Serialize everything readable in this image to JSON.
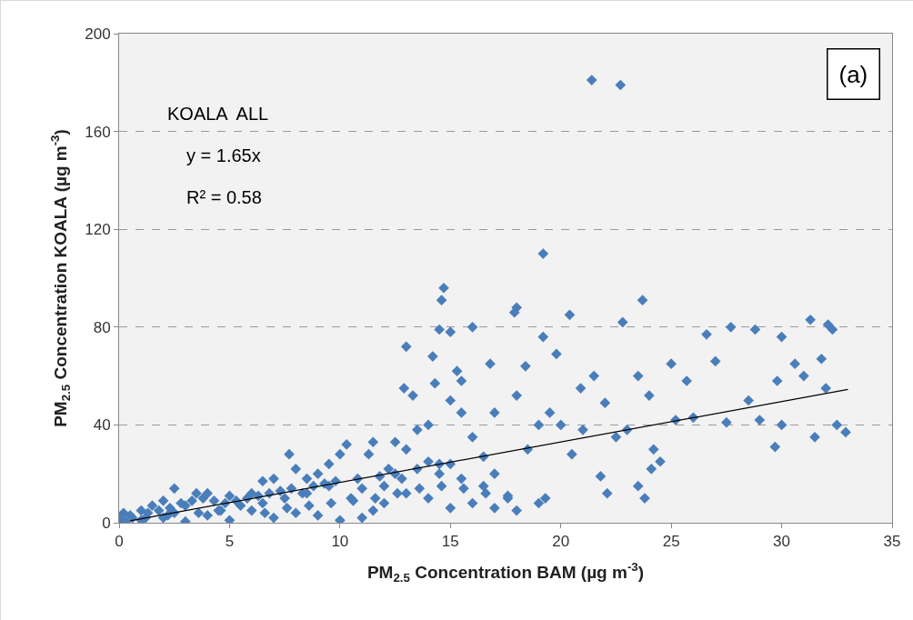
{
  "chart_data": {
    "type": "scatter",
    "xlabel": "PM$_{2.5}$ Concentration BAM (µg m$^{-3}$)",
    "ylabel": "PM$_{2.5}$ Concentration KOALA (µg m$^{-3}$)",
    "annotations": [
      "KOALA  ALL",
      "y = 1.65x",
      "R² = 0.58",
      "(a)"
    ],
    "xlim": [
      0,
      35
    ],
    "xticks": [
      0,
      5,
      10,
      15,
      20,
      25,
      30,
      35
    ],
    "ylim": [
      0,
      200
    ],
    "yticks": [
      0,
      40,
      80,
      120,
      160,
      200
    ],
    "grid": "y",
    "marker": "diamond",
    "series": [
      {
        "color": "#4a7ebb",
        "x": [
          21.4,
          22.7,
          19.2,
          14.7,
          14.6,
          23.7,
          20.4,
          22.8,
          18.0,
          17.9,
          16.0,
          15.0,
          14.5,
          31.3,
          32.1,
          32.3,
          27.7,
          28.8,
          26.6,
          30.0,
          19.2,
          13.0,
          16.8,
          14.2,
          12.9,
          13.3,
          15.3,
          15.5,
          14.3,
          18.4,
          19.8,
          20.9,
          21.5,
          22.0,
          23.5,
          24.0,
          25.0,
          25.7,
          27.0,
          28.5,
          29.8,
          30.6,
          31.0,
          31.8,
          32.0,
          32.5,
          32.9,
          31.5,
          29.7,
          30.0,
          29.0,
          27.5,
          26.0,
          25.2,
          24.2,
          24.1,
          23.8,
          23.5,
          22.1,
          21.8,
          20.5,
          19.3,
          19.0,
          18.0,
          17.6,
          17.0,
          16.5,
          16.0,
          15.5,
          15.0,
          14.0,
          13.5,
          13.0,
          12.5,
          12.8,
          12.2,
          11.5,
          11.3,
          10.3,
          10.0,
          9.5,
          9.0,
          8.5,
          7.7,
          8.0,
          7.0,
          6.5,
          6.0,
          5.0,
          4.0,
          3.5,
          2.5,
          2.0,
          1.5,
          1.0,
          0.5,
          0.2,
          0.1,
          0.0,
          0.3,
          1.0,
          2.0,
          3.0,
          4.0,
          5.0,
          6.0,
          7.0,
          8.0,
          9.0,
          10.0,
          11.0,
          11.5,
          12.0,
          13.0,
          14.0,
          15.0,
          16.0,
          17.0,
          10.5,
          8.5,
          5.5,
          3.0,
          12.0,
          14.5,
          15.5,
          16.5,
          18.5,
          19.5,
          20.0,
          21.0,
          22.5,
          23.0,
          24.5,
          19.0,
          18.0,
          17.0,
          15.0,
          14.0,
          11.0,
          9.5,
          7.5,
          6.5,
          4.5,
          2.5,
          0.6,
          1.3,
          1.8,
          2.3,
          2.8,
          3.3,
          3.8,
          4.3,
          4.8,
          5.3,
          5.8,
          6.3,
          6.8,
          7.3,
          7.8,
          8.3,
          8.8,
          9.3,
          9.8,
          10.8,
          11.8,
          12.5,
          13.5,
          14.5,
          1.2,
          2.2,
          3.6,
          4.6,
          6.6,
          7.6,
          8.6,
          9.6,
          10.6,
          11.6,
          12.6,
          13.6,
          14.6,
          15.6,
          16.6,
          17.6
        ],
        "values": [
          181,
          179,
          110,
          96,
          91,
          91,
          85,
          82,
          88,
          86,
          80,
          78,
          79,
          83,
          81,
          79,
          80,
          79,
          77,
          76,
          76,
          72,
          65,
          68,
          55,
          52,
          62,
          58,
          57,
          64,
          69,
          55,
          60,
          49,
          60,
          52,
          65,
          58,
          66,
          50,
          58,
          65,
          60,
          67,
          55,
          40,
          37,
          35,
          31,
          40,
          42,
          41,
          43,
          42,
          30,
          22,
          10,
          15,
          12,
          19,
          28,
          10,
          8,
          5,
          10,
          20,
          27,
          35,
          45,
          50,
          40,
          38,
          30,
          33,
          18,
          22,
          33,
          28,
          32,
          28,
          24,
          20,
          18,
          28,
          22,
          18,
          17,
          12,
          11,
          12,
          12,
          14,
          9,
          7,
          5,
          3,
          4,
          1,
          2,
          0.5,
          1,
          2,
          0.5,
          3,
          1,
          5,
          2,
          4,
          3,
          1,
          2,
          5,
          8,
          12,
          10,
          6,
          8,
          6,
          10,
          12,
          7,
          7,
          15,
          20,
          18,
          15,
          30,
          45,
          40,
          38,
          35,
          38,
          25,
          40,
          52,
          45,
          24,
          25,
          14,
          15,
          10,
          8,
          5,
          4,
          2,
          4,
          5,
          6,
          8,
          9,
          10,
          9,
          8,
          9,
          10,
          11,
          12,
          13,
          14,
          12,
          15,
          16,
          17,
          18,
          19,
          20,
          22,
          24,
          2,
          3,
          4,
          5,
          4,
          6,
          7,
          8,
          9,
          10,
          12,
          14,
          15,
          14,
          12,
          11
        ]
      },
      {
        "type": "line",
        "color": "#000000",
        "marker": "none",
        "x": [
          0.5,
          33
        ],
        "values": [
          0.8,
          54.5
        ]
      }
    ]
  }
}
